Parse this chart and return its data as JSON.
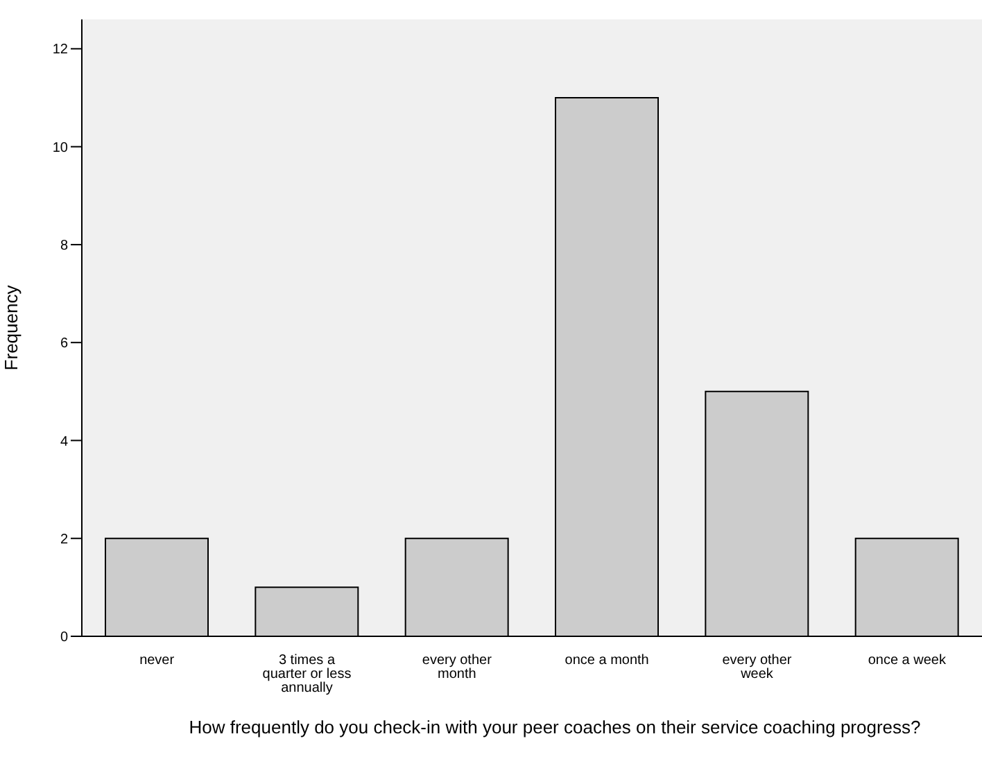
{
  "chart_data": {
    "type": "bar",
    "xlabel": "How frequently do you check-in with your peer coaches on their service coaching progress?",
    "ylabel": "Frequency",
    "categories": [
      "never",
      "3 times a quarter or less annually",
      "every other month",
      "once a month",
      "every other week",
      "once a week"
    ],
    "values": [
      2,
      1,
      2,
      11,
      5,
      2
    ],
    "color": "#cccccc",
    "ylim": [
      0,
      12.6
    ],
    "yticks": [
      0,
      2,
      4,
      6,
      8,
      10,
      12
    ]
  }
}
